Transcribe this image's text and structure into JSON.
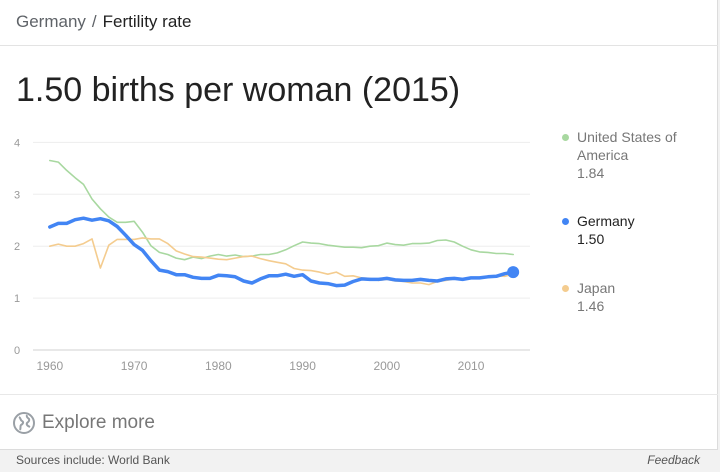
{
  "breadcrumb": {
    "parent": "Germany",
    "separator": "/",
    "current": "Fertility rate"
  },
  "headline": "1.50 births per woman (2015)",
  "legend": [
    {
      "name_lines": [
        "United States of",
        "America"
      ],
      "value": "1.84",
      "color": "#a8d8a0",
      "active": false
    },
    {
      "name_lines": [
        "Germany"
      ],
      "value": "1.50",
      "color": "#4285f4",
      "active": true
    },
    {
      "name_lines": [
        "Japan"
      ],
      "value": "1.46",
      "color": "#f4cc8f",
      "active": false
    }
  ],
  "explore": {
    "label": "Explore more",
    "icon": "globe-icon"
  },
  "footer": {
    "sources": "Sources include: World Bank",
    "feedback": "Feedback"
  },
  "chart_data": {
    "type": "line",
    "x_ticks": [
      "1960",
      "1970",
      "1980",
      "1990",
      "2000",
      "2010"
    ],
    "y_ticks": [
      "0",
      "1",
      "2",
      "3",
      "4"
    ],
    "xlim": [
      1958,
      2017
    ],
    "ylim": [
      0,
      4.2
    ],
    "grid": true,
    "legend_position": "right",
    "series": [
      {
        "name": "United States of America",
        "color": "#a8d8a0",
        "x": [
          1960,
          1961,
          1962,
          1963,
          1964,
          1965,
          1966,
          1967,
          1968,
          1969,
          1970,
          1971,
          1972,
          1973,
          1974,
          1975,
          1976,
          1977,
          1978,
          1979,
          1980,
          1981,
          1982,
          1983,
          1984,
          1985,
          1986,
          1987,
          1988,
          1989,
          1990,
          1991,
          1992,
          1993,
          1994,
          1995,
          1996,
          1997,
          1998,
          1999,
          2000,
          2001,
          2002,
          2003,
          2004,
          2005,
          2006,
          2007,
          2008,
          2009,
          2010,
          2011,
          2012,
          2013,
          2014,
          2015
        ],
        "y": [
          3.65,
          3.62,
          3.46,
          3.32,
          3.19,
          2.91,
          2.72,
          2.56,
          2.46,
          2.46,
          2.48,
          2.27,
          2.01,
          1.88,
          1.84,
          1.77,
          1.74,
          1.79,
          1.76,
          1.81,
          1.84,
          1.81,
          1.83,
          1.8,
          1.81,
          1.84,
          1.84,
          1.87,
          1.93,
          2.01,
          2.08,
          2.06,
          2.05,
          2.02,
          2.0,
          1.98,
          1.98,
          1.97,
          2.0,
          2.01,
          2.06,
          2.03,
          2.02,
          2.05,
          2.05,
          2.06,
          2.11,
          2.12,
          2.08,
          2.0,
          1.93,
          1.89,
          1.88,
          1.86,
          1.86,
          1.84
        ]
      },
      {
        "name": "Japan",
        "color": "#f4cc8f",
        "x": [
          1960,
          1961,
          1962,
          1963,
          1964,
          1965,
          1966,
          1967,
          1968,
          1969,
          1970,
          1971,
          1972,
          1973,
          1974,
          1975,
          1976,
          1977,
          1978,
          1979,
          1980,
          1981,
          1982,
          1983,
          1984,
          1985,
          1986,
          1987,
          1988,
          1989,
          1990,
          1991,
          1992,
          1993,
          1994,
          1995,
          1996,
          1997,
          1998,
          1999,
          2000,
          2001,
          2002,
          2003,
          2004,
          2005,
          2006,
          2007,
          2008,
          2009,
          2010,
          2011,
          2012,
          2013,
          2014,
          2015
        ],
        "y": [
          2.0,
          2.04,
          2.0,
          2.0,
          2.05,
          2.14,
          1.58,
          2.02,
          2.13,
          2.13,
          2.13,
          2.16,
          2.14,
          2.14,
          2.05,
          1.91,
          1.85,
          1.8,
          1.79,
          1.77,
          1.75,
          1.74,
          1.77,
          1.8,
          1.81,
          1.76,
          1.72,
          1.69,
          1.66,
          1.57,
          1.54,
          1.53,
          1.5,
          1.46,
          1.5,
          1.42,
          1.43,
          1.39,
          1.38,
          1.34,
          1.36,
          1.33,
          1.32,
          1.29,
          1.29,
          1.26,
          1.32,
          1.34,
          1.37,
          1.37,
          1.39,
          1.39,
          1.41,
          1.43,
          1.42,
          1.46
        ]
      },
      {
        "name": "Germany",
        "color": "#4285f4",
        "x": [
          1960,
          1961,
          1962,
          1963,
          1964,
          1965,
          1966,
          1967,
          1968,
          1969,
          1970,
          1971,
          1972,
          1973,
          1974,
          1975,
          1976,
          1977,
          1978,
          1979,
          1980,
          1981,
          1982,
          1983,
          1984,
          1985,
          1986,
          1987,
          1988,
          1989,
          1990,
          1991,
          1992,
          1993,
          1994,
          1995,
          1996,
          1997,
          1998,
          1999,
          2000,
          2001,
          2002,
          2003,
          2004,
          2005,
          2006,
          2007,
          2008,
          2009,
          2010,
          2011,
          2012,
          2013,
          2014,
          2015
        ],
        "y": [
          2.37,
          2.44,
          2.44,
          2.51,
          2.54,
          2.5,
          2.53,
          2.49,
          2.38,
          2.21,
          2.03,
          1.92,
          1.72,
          1.54,
          1.51,
          1.45,
          1.45,
          1.4,
          1.38,
          1.38,
          1.44,
          1.43,
          1.41,
          1.33,
          1.29,
          1.37,
          1.43,
          1.43,
          1.46,
          1.42,
          1.45,
          1.33,
          1.29,
          1.28,
          1.24,
          1.25,
          1.32,
          1.37,
          1.36,
          1.36,
          1.38,
          1.35,
          1.34,
          1.34,
          1.36,
          1.34,
          1.33,
          1.37,
          1.38,
          1.36,
          1.39,
          1.39,
          1.41,
          1.42,
          1.47,
          1.5
        ]
      }
    ]
  }
}
